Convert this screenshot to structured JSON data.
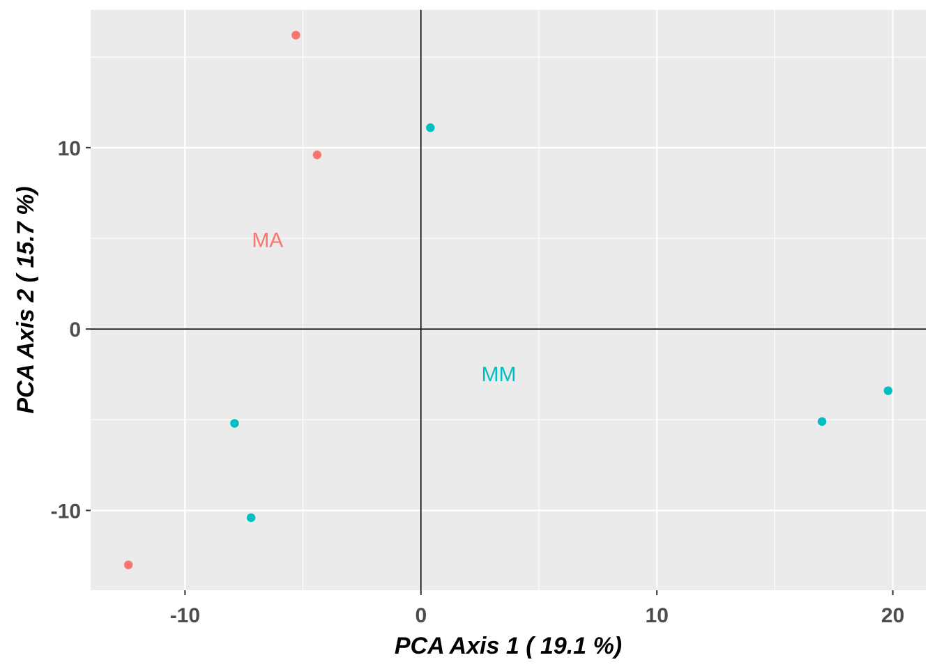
{
  "chart_data": {
    "type": "scatter",
    "xlabel": "PCA Axis 1 ( 19.1 %)",
    "ylabel": "PCA Axis 2 ( 15.7 %)",
    "xlim": [
      -14.0,
      21.4
    ],
    "ylim": [
      -14.4,
      17.6
    ],
    "x_ticks": [
      -10,
      0,
      10,
      20
    ],
    "y_ticks": [
      -10,
      0,
      10
    ],
    "x_tick_labels": [
      "-10",
      "0",
      "10",
      "20"
    ],
    "y_tick_labels": [
      "-10",
      "0",
      "10"
    ],
    "grid": true,
    "reference_lines": {
      "x": 0,
      "y": 0
    },
    "series": [
      {
        "name": "MA",
        "color": "#F8766D",
        "points": [
          {
            "x": -5.3,
            "y": 16.2
          },
          {
            "x": -4.4,
            "y": 9.6
          },
          {
            "x": -12.4,
            "y": -13.0
          }
        ]
      },
      {
        "name": "MM",
        "color": "#00BFC4",
        "points": [
          {
            "x": 0.4,
            "y": 11.1
          },
          {
            "x": -7.9,
            "y": -5.2
          },
          {
            "x": -7.2,
            "y": -10.4
          },
          {
            "x": 17.0,
            "y": -5.1
          },
          {
            "x": 19.8,
            "y": -3.4
          }
        ]
      }
    ],
    "annotations": [
      {
        "text": "MA",
        "x": -6.5,
        "y": 4.9,
        "color": "#F8766D"
      },
      {
        "text": "MM",
        "x": 3.3,
        "y": -2.5,
        "color": "#00BFC4"
      }
    ]
  }
}
